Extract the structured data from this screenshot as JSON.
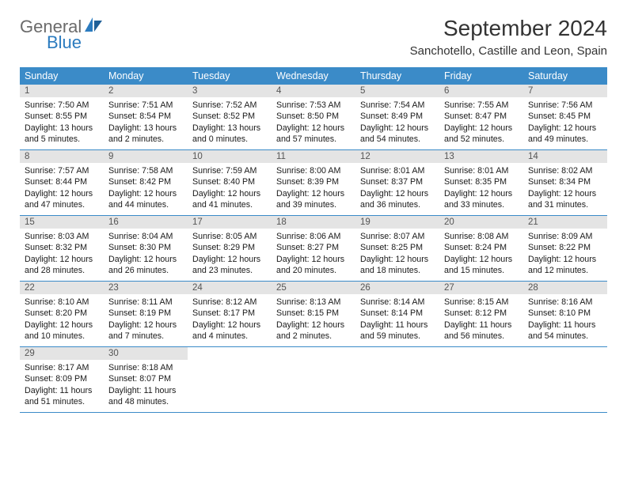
{
  "brand": {
    "part1": "General",
    "part2": "Blue"
  },
  "title": "September 2024",
  "location": "Sanchotello, Castille and Leon, Spain",
  "colors": {
    "header_bg": "#3b8bc8",
    "daynum_bg": "#e4e4e4",
    "brand_blue": "#2b7bbf",
    "brand_gray": "#6b6b6b"
  },
  "weekdays": [
    "Sunday",
    "Monday",
    "Tuesday",
    "Wednesday",
    "Thursday",
    "Friday",
    "Saturday"
  ],
  "weeks": [
    [
      {
        "n": "1",
        "sr": "7:50 AM",
        "ss": "8:55 PM",
        "dl": "13 hours and 5 minutes."
      },
      {
        "n": "2",
        "sr": "7:51 AM",
        "ss": "8:54 PM",
        "dl": "13 hours and 2 minutes."
      },
      {
        "n": "3",
        "sr": "7:52 AM",
        "ss": "8:52 PM",
        "dl": "13 hours and 0 minutes."
      },
      {
        "n": "4",
        "sr": "7:53 AM",
        "ss": "8:50 PM",
        "dl": "12 hours and 57 minutes."
      },
      {
        "n": "5",
        "sr": "7:54 AM",
        "ss": "8:49 PM",
        "dl": "12 hours and 54 minutes."
      },
      {
        "n": "6",
        "sr": "7:55 AM",
        "ss": "8:47 PM",
        "dl": "12 hours and 52 minutes."
      },
      {
        "n": "7",
        "sr": "7:56 AM",
        "ss": "8:45 PM",
        "dl": "12 hours and 49 minutes."
      }
    ],
    [
      {
        "n": "8",
        "sr": "7:57 AM",
        "ss": "8:44 PM",
        "dl": "12 hours and 47 minutes."
      },
      {
        "n": "9",
        "sr": "7:58 AM",
        "ss": "8:42 PM",
        "dl": "12 hours and 44 minutes."
      },
      {
        "n": "10",
        "sr": "7:59 AM",
        "ss": "8:40 PM",
        "dl": "12 hours and 41 minutes."
      },
      {
        "n": "11",
        "sr": "8:00 AM",
        "ss": "8:39 PM",
        "dl": "12 hours and 39 minutes."
      },
      {
        "n": "12",
        "sr": "8:01 AM",
        "ss": "8:37 PM",
        "dl": "12 hours and 36 minutes."
      },
      {
        "n": "13",
        "sr": "8:01 AM",
        "ss": "8:35 PM",
        "dl": "12 hours and 33 minutes."
      },
      {
        "n": "14",
        "sr": "8:02 AM",
        "ss": "8:34 PM",
        "dl": "12 hours and 31 minutes."
      }
    ],
    [
      {
        "n": "15",
        "sr": "8:03 AM",
        "ss": "8:32 PM",
        "dl": "12 hours and 28 minutes."
      },
      {
        "n": "16",
        "sr": "8:04 AM",
        "ss": "8:30 PM",
        "dl": "12 hours and 26 minutes."
      },
      {
        "n": "17",
        "sr": "8:05 AM",
        "ss": "8:29 PM",
        "dl": "12 hours and 23 minutes."
      },
      {
        "n": "18",
        "sr": "8:06 AM",
        "ss": "8:27 PM",
        "dl": "12 hours and 20 minutes."
      },
      {
        "n": "19",
        "sr": "8:07 AM",
        "ss": "8:25 PM",
        "dl": "12 hours and 18 minutes."
      },
      {
        "n": "20",
        "sr": "8:08 AM",
        "ss": "8:24 PM",
        "dl": "12 hours and 15 minutes."
      },
      {
        "n": "21",
        "sr": "8:09 AM",
        "ss": "8:22 PM",
        "dl": "12 hours and 12 minutes."
      }
    ],
    [
      {
        "n": "22",
        "sr": "8:10 AM",
        "ss": "8:20 PM",
        "dl": "12 hours and 10 minutes."
      },
      {
        "n": "23",
        "sr": "8:11 AM",
        "ss": "8:19 PM",
        "dl": "12 hours and 7 minutes."
      },
      {
        "n": "24",
        "sr": "8:12 AM",
        "ss": "8:17 PM",
        "dl": "12 hours and 4 minutes."
      },
      {
        "n": "25",
        "sr": "8:13 AM",
        "ss": "8:15 PM",
        "dl": "12 hours and 2 minutes."
      },
      {
        "n": "26",
        "sr": "8:14 AM",
        "ss": "8:14 PM",
        "dl": "11 hours and 59 minutes."
      },
      {
        "n": "27",
        "sr": "8:15 AM",
        "ss": "8:12 PM",
        "dl": "11 hours and 56 minutes."
      },
      {
        "n": "28",
        "sr": "8:16 AM",
        "ss": "8:10 PM",
        "dl": "11 hours and 54 minutes."
      }
    ],
    [
      {
        "n": "29",
        "sr": "8:17 AM",
        "ss": "8:09 PM",
        "dl": "11 hours and 51 minutes."
      },
      {
        "n": "30",
        "sr": "8:18 AM",
        "ss": "8:07 PM",
        "dl": "11 hours and 48 minutes."
      },
      null,
      null,
      null,
      null,
      null
    ]
  ],
  "labels": {
    "sunrise": "Sunrise:",
    "sunset": "Sunset:",
    "daylight": "Daylight:"
  }
}
